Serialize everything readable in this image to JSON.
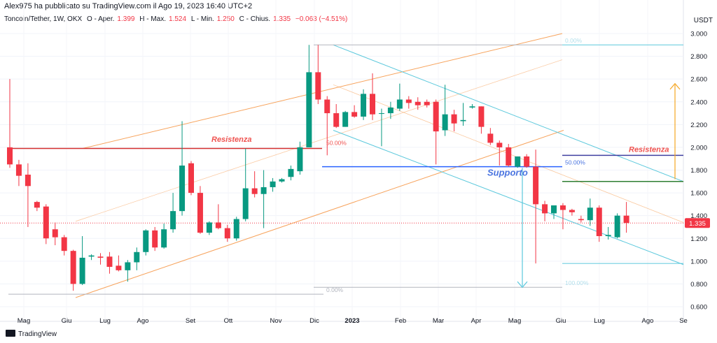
{
  "header": {
    "published_by": "Alex975 ha pubblicato su TradingView.com il Ago 19, 2023 16:40 UTC+2",
    "symbol": "Toncoin/Tether, 1W, OKX",
    "o_label": "O - Aper.",
    "o_val": "1.399",
    "h_label": "H - Max.",
    "h_val": "1.524",
    "l_label": "L - Min.",
    "l_val": "1.250",
    "c_label": "C - Chius.",
    "c_val": "1.335",
    "change": "−0.063 (−4.51%)"
  },
  "currency": "USDT",
  "brand": "TradingView",
  "colors": {
    "up": "#089981",
    "down": "#f23645",
    "orange": "#f7a35c",
    "cyan": "#5bc8dc",
    "blue": "#2962ff",
    "red_line": "#d32f2f",
    "green_line": "#2e7d32"
  },
  "chart_data": {
    "type": "candlestick",
    "interval": "1W",
    "y_axis": {
      "min": 0.6,
      "max": 3.0,
      "ticks": [
        "0.600",
        "0.800",
        "1.000",
        "1.200",
        "1.400",
        "1.600",
        "1.800",
        "2.000",
        "2.200",
        "2.400",
        "2.600",
        "2.800",
        "3.000"
      ]
    },
    "x_labels": [
      "Mag",
      "Giu",
      "Lug",
      "Ago",
      "Set",
      "Ott",
      "Nov",
      "Dic",
      "2023",
      "Feb",
      "Mar",
      "Apr",
      "Mag",
      "Giu",
      "Lug",
      "Ago",
      "Se"
    ],
    "last_price": "1.335",
    "candles": [
      [
        2.0,
        2.6,
        1.82,
        1.85
      ],
      [
        1.85,
        1.89,
        1.66,
        1.75
      ],
      [
        1.76,
        1.86,
        1.3,
        1.66
      ],
      [
        1.52,
        1.53,
        1.44,
        1.47
      ],
      [
        1.48,
        1.5,
        1.15,
        1.2
      ],
      [
        1.28,
        1.34,
        1.14,
        1.21
      ],
      [
        1.21,
        1.23,
        1.05,
        1.09
      ],
      [
        1.09,
        1.1,
        0.74,
        0.8
      ],
      [
        0.8,
        1.22,
        0.79,
        1.03
      ],
      [
        1.04,
        1.06,
        1.01,
        1.05
      ],
      [
        1.04,
        1.07,
        0.97,
        1.03
      ],
      [
        1.04,
        1.08,
        0.89,
        0.95
      ],
      [
        0.96,
        1.05,
        0.91,
        0.92
      ],
      [
        0.92,
        1.01,
        0.82,
        0.99
      ],
      [
        0.99,
        1.12,
        0.92,
        1.08
      ],
      [
        1.08,
        1.28,
        1.05,
        1.27
      ],
      [
        1.27,
        1.3,
        1.09,
        1.12
      ],
      [
        1.12,
        1.33,
        1.11,
        1.28
      ],
      [
        1.28,
        1.6,
        1.25,
        1.44
      ],
      [
        1.44,
        2.23,
        1.4,
        1.84
      ],
      [
        1.86,
        1.88,
        1.58,
        1.6
      ],
      [
        1.6,
        1.66,
        1.24,
        1.25
      ],
      [
        1.25,
        1.35,
        1.23,
        1.34
      ],
      [
        1.34,
        1.5,
        1.28,
        1.29
      ],
      [
        1.29,
        1.32,
        1.17,
        1.2
      ],
      [
        1.2,
        1.39,
        1.18,
        1.37
      ],
      [
        1.37,
        1.99,
        1.35,
        1.64
      ],
      [
        1.64,
        1.79,
        1.56,
        1.59
      ],
      [
        1.59,
        1.8,
        1.29,
        1.65
      ],
      [
        1.65,
        1.73,
        1.61,
        1.7
      ],
      [
        1.7,
        1.73,
        1.69,
        1.72
      ],
      [
        1.74,
        1.84,
        1.71,
        1.81
      ],
      [
        1.79,
        2.05,
        1.76,
        2.0
      ],
      [
        2.0,
        2.9,
        2.0,
        2.66
      ],
      [
        2.66,
        2.9,
        2.38,
        2.42
      ],
      [
        2.42,
        2.45,
        1.93,
        2.3
      ],
      [
        2.3,
        2.38,
        2.17,
        2.18
      ],
      [
        2.18,
        2.32,
        2.18,
        2.31
      ],
      [
        2.31,
        2.37,
        2.26,
        2.27
      ],
      [
        2.27,
        2.51,
        2.24,
        2.47
      ],
      [
        2.47,
        2.65,
        2.24,
        2.29
      ],
      [
        2.3,
        2.34,
        2.01,
        2.3
      ],
      [
        2.3,
        2.4,
        2.25,
        2.35
      ],
      [
        2.34,
        2.56,
        2.32,
        2.42
      ],
      [
        2.42,
        2.45,
        2.34,
        2.39
      ],
      [
        2.4,
        2.44,
        2.33,
        2.37
      ],
      [
        2.4,
        2.42,
        2.35,
        2.37
      ],
      [
        2.4,
        2.42,
        1.85,
        2.14
      ],
      [
        2.15,
        2.55,
        2.1,
        2.29
      ],
      [
        2.29,
        2.33,
        2.14,
        2.21
      ],
      [
        2.23,
        2.39,
        2.19,
        2.24
      ],
      [
        2.35,
        2.38,
        2.34,
        2.36
      ],
      [
        2.36,
        2.36,
        2.12,
        2.18
      ],
      [
        2.12,
        2.17,
        2.02,
        2.04
      ],
      [
        2.04,
        2.06,
        1.84,
        2.0
      ],
      [
        2.0,
        2.03,
        1.83,
        1.84
      ],
      [
        1.83,
        1.92,
        1.82,
        1.92
      ],
      [
        1.92,
        1.94,
        1.82,
        1.83
      ],
      [
        1.83,
        1.98,
        0.98,
        1.5
      ],
      [
        1.5,
        1.53,
        1.35,
        1.42
      ],
      [
        1.42,
        1.49,
        1.37,
        1.49
      ],
      [
        1.49,
        1.51,
        1.28,
        1.45
      ],
      [
        1.45,
        1.46,
        1.4,
        1.43
      ],
      [
        1.37,
        1.4,
        1.34,
        1.36
      ],
      [
        1.36,
        1.55,
        1.31,
        1.47
      ],
      [
        1.47,
        1.49,
        1.17,
        1.22
      ],
      [
        1.22,
        1.3,
        1.19,
        1.23
      ],
      [
        1.21,
        1.42,
        1.2,
        1.4
      ],
      [
        1.4,
        1.52,
        1.25,
        1.335
      ]
    ]
  },
  "annotations": {
    "resistance_left": "Resistenza",
    "resistance_right": "Resistenza",
    "support": "Supporto",
    "fib_top_left": "50.00%",
    "fib_bottom_left": "0.00%",
    "fib_top_right": "0.00%",
    "fib_mid_right": "50.00%",
    "fib_bottom_right": "100.00%"
  }
}
